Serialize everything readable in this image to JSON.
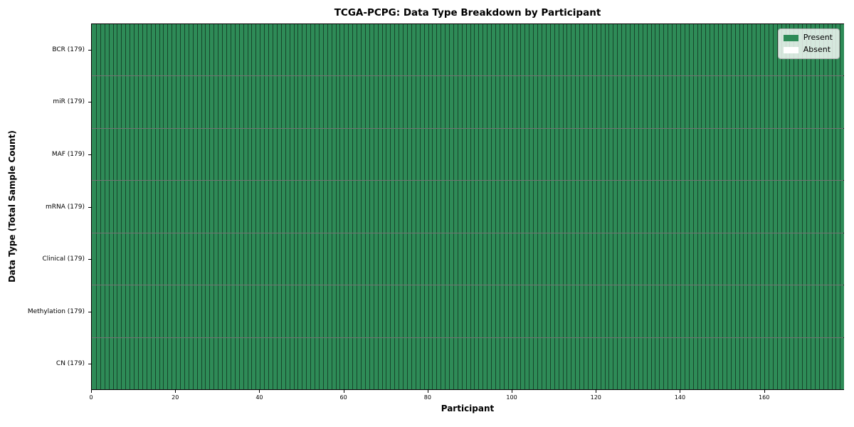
{
  "chart_data": {
    "type": "heatmap",
    "title": "TCGA-PCPG: Data Type Breakdown by Participant",
    "xlabel": "Participant",
    "ylabel": "Data Type (Total Sample Count)",
    "participant_count": 179,
    "x_range": [
      0,
      179
    ],
    "x_ticks": [
      0,
      20,
      40,
      60,
      80,
      100,
      120,
      140,
      160
    ],
    "categories": [
      "BCR (179)",
      "miR (179)",
      "MAF (179)",
      "mRNA (179)",
      "Clinical (179)",
      "Methylation (179)",
      "CN (179)"
    ],
    "series": [
      {
        "name": "BCR",
        "total_sample_count": 179,
        "present": 179,
        "absent": 0
      },
      {
        "name": "miR",
        "total_sample_count": 179,
        "present": 179,
        "absent": 0
      },
      {
        "name": "MAF",
        "total_sample_count": 179,
        "present": 179,
        "absent": 0
      },
      {
        "name": "mRNA",
        "total_sample_count": 179,
        "present": 179,
        "absent": 0
      },
      {
        "name": "Clinical",
        "total_sample_count": 179,
        "present": 179,
        "absent": 0
      },
      {
        "name": "Methylation",
        "total_sample_count": 179,
        "present": 179,
        "absent": 0
      },
      {
        "name": "CN",
        "total_sample_count": 179,
        "present": 179,
        "absent": 0
      }
    ],
    "legend": [
      {
        "label": "Present",
        "color": "#2e8b57"
      },
      {
        "label": "Absent",
        "color": "#ffffff"
      }
    ],
    "colors": {
      "present": "#2e8b57",
      "absent": "#ffffff",
      "cell_edge": "#1e4432",
      "axis": "#000000"
    },
    "layout": {
      "grid": "off",
      "legend_position": "upper right",
      "rows": 7
    }
  }
}
